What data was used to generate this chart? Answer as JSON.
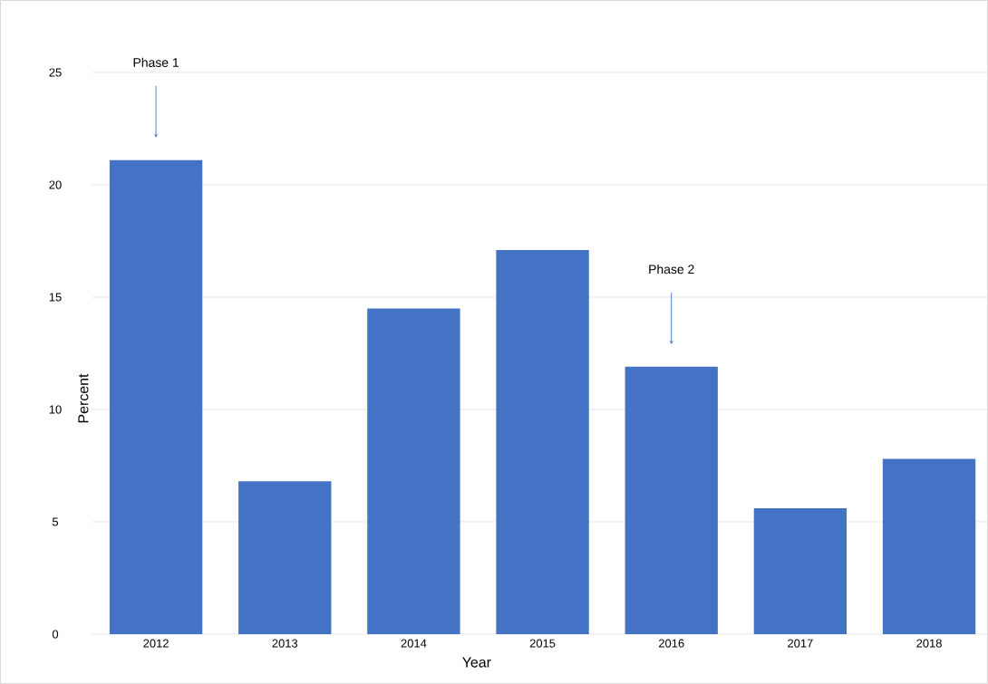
{
  "chart_data": {
    "type": "bar",
    "xlabel": "Year",
    "ylabel": "Percent",
    "categories": [
      "2012",
      "2013",
      "2014",
      "2015",
      "2016",
      "2017",
      "2018"
    ],
    "values": [
      21.1,
      6.8,
      14.5,
      17.1,
      11.9,
      5.6,
      7.8
    ],
    "color": "#4472c4",
    "ylim": [
      0,
      25
    ],
    "yticks": [
      0,
      5,
      10,
      15,
      20,
      25
    ],
    "grid": "y",
    "annotations": [
      "Phase 1",
      "Phase 2"
    ]
  }
}
